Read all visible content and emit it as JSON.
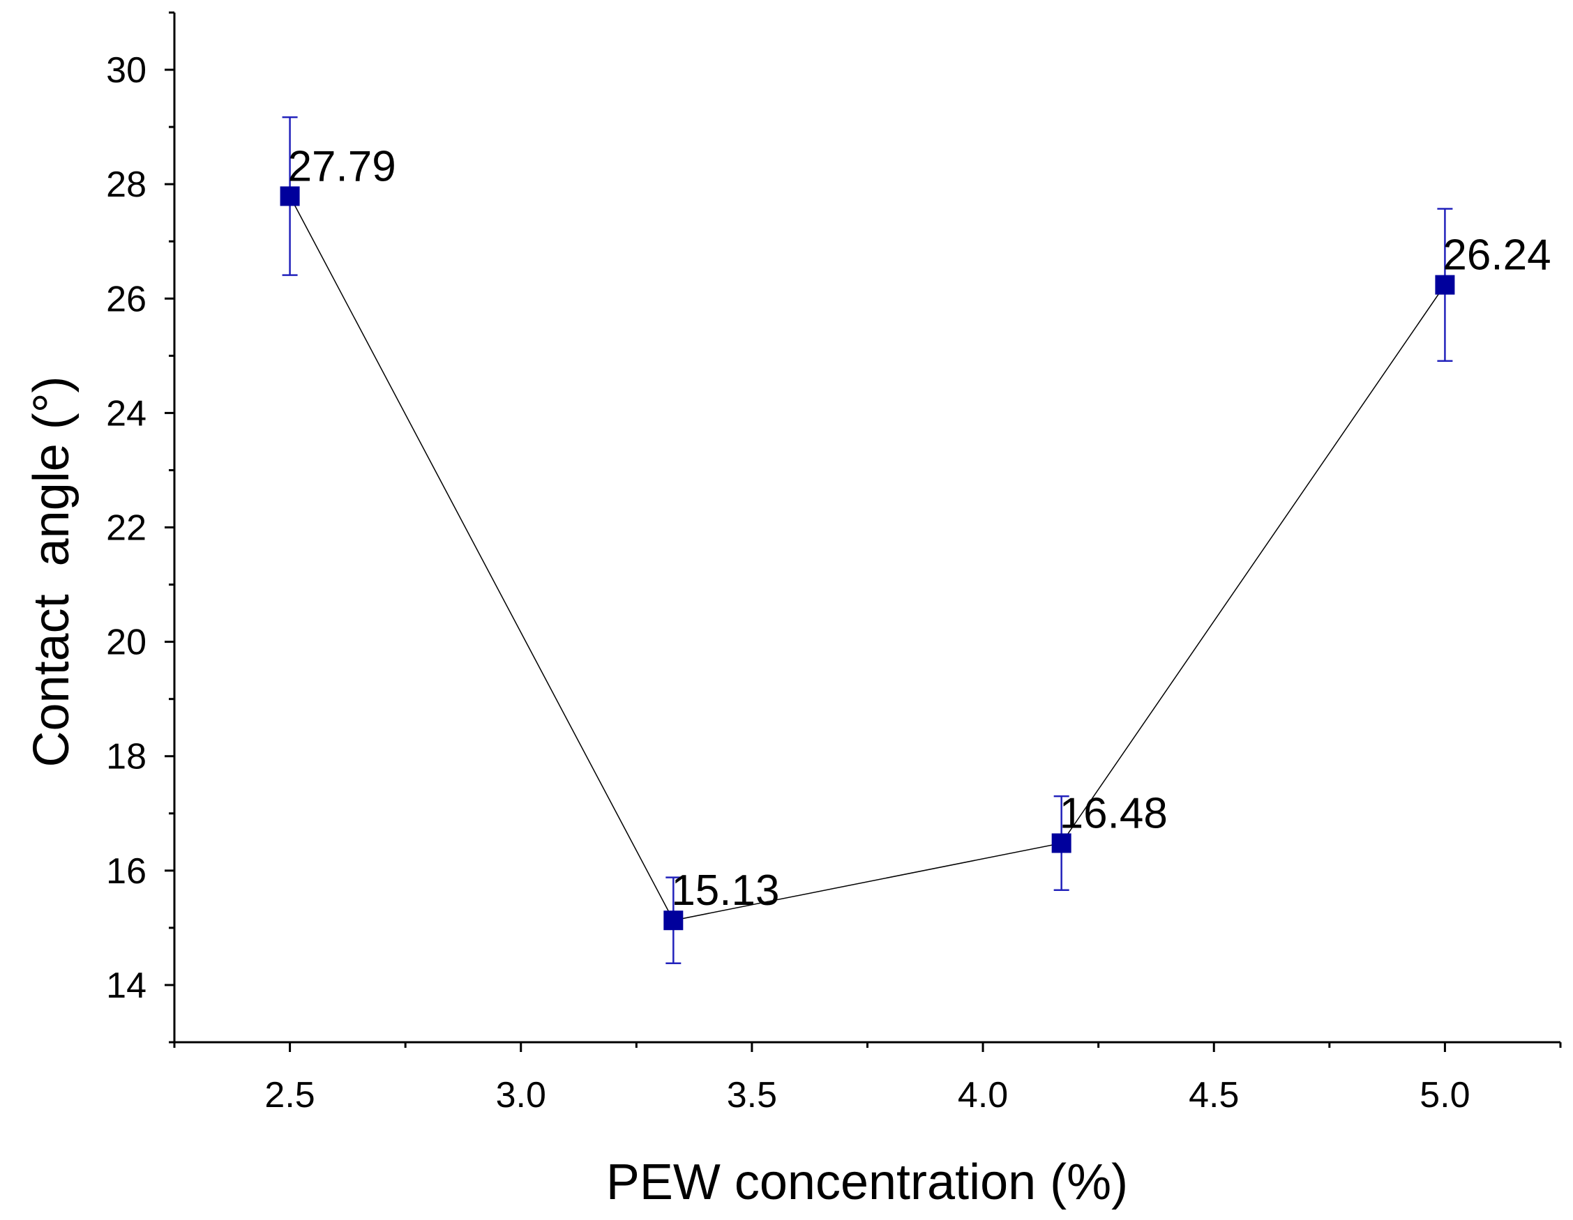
{
  "chart_data": {
    "type": "line",
    "title": "",
    "xlabel": "PEW concentration (%)",
    "ylabel": "Contact  angle (°)",
    "xlim": [
      2.25,
      5.25
    ],
    "ylim": [
      13,
      31
    ],
    "x_ticks": [
      2.5,
      3.0,
      3.5,
      4.0,
      4.5,
      5.0
    ],
    "x_tick_labels": [
      "2.5",
      "3.0",
      "3.5",
      "4.0",
      "4.5",
      "5.0"
    ],
    "y_ticks": [
      14,
      16,
      18,
      20,
      22,
      24,
      26,
      28,
      30
    ],
    "y_tick_labels": [
      "14",
      "16",
      "18",
      "20",
      "22",
      "24",
      "26",
      "28",
      "30"
    ],
    "grid": false,
    "series": [
      {
        "name": "Contact angle",
        "x": [
          2.5,
          3.33,
          4.17,
          5.0
        ],
        "y": [
          27.79,
          15.13,
          16.48,
          26.24
        ],
        "error": [
          1.38,
          0.75,
          0.82,
          1.33
        ],
        "labels": [
          "27.79",
          "15.13",
          "16.48",
          "26.24"
        ]
      }
    ],
    "colors": {
      "marker": "#00009c",
      "errorbar": "#2222bb",
      "line": "#000000"
    }
  }
}
